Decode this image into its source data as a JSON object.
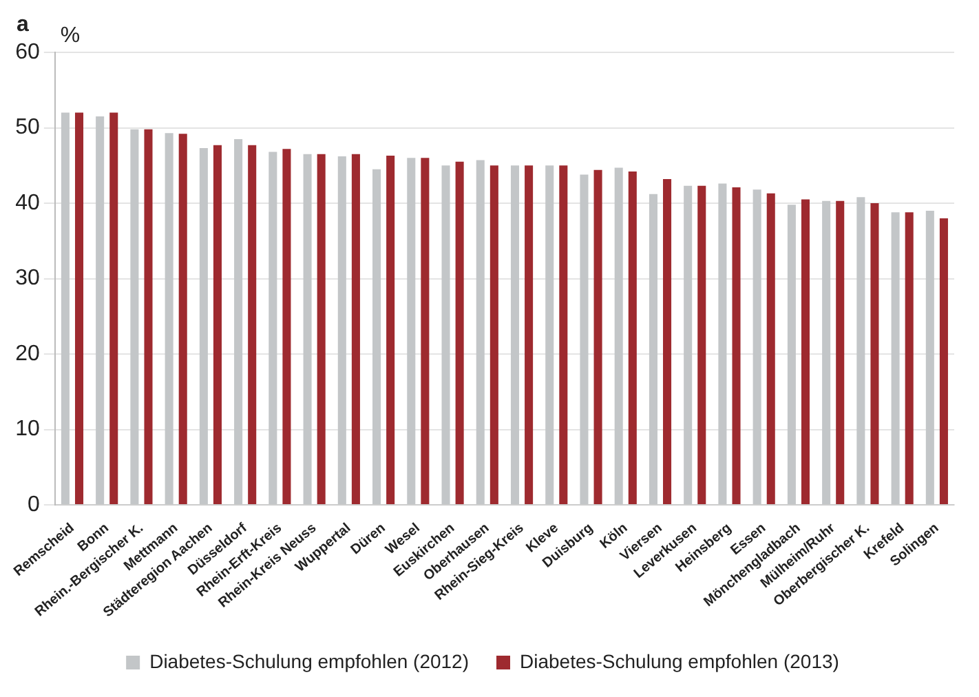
{
  "chart_data": {
    "type": "bar",
    "ylabel": "%",
    "annotations": [
      "a"
    ],
    "categories": [
      "Remscheid",
      "Bonn",
      "Rhein.-Bergischer K.",
      "Mettmann",
      "Städteregion Aachen",
      "Düsseldorf",
      "Rhein-Erft-Kreis",
      "Rhein-Kreis Neuss",
      "Wuppertal",
      "Düren",
      "Wesel",
      "Euskirchen",
      "Oberhausen",
      "Rhein-Sieg-Kreis",
      "Kleve",
      "Duisburg",
      "Köln",
      "Viersen",
      "Leverkusen",
      "Heinsberg",
      "Essen",
      "Mönchengladbach",
      "Mülheim/Ruhr",
      "Oberbergischer K.",
      "Krefeld",
      "Solingen"
    ],
    "series": [
      {
        "name": "Diabetes-Schulung empfohlen (2012)",
        "color": "#c3c6c8",
        "values": [
          52,
          51.5,
          49.8,
          49.3,
          47.3,
          48.5,
          46.8,
          46.5,
          46.2,
          44.5,
          46,
          45,
          45.7,
          45,
          45,
          43.8,
          44.7,
          41.2,
          42.3,
          42.6,
          41.8,
          39.8,
          40.3,
          40.8,
          38.8,
          39
        ]
      },
      {
        "name": "Diabetes-Schulung empfohlen (2013)",
        "color": "#9e2a2f",
        "values": [
          52,
          52,
          49.8,
          49.2,
          47.7,
          47.7,
          47.2,
          46.5,
          46.5,
          46.3,
          46,
          45.5,
          45,
          45,
          45,
          44.4,
          44.2,
          43.2,
          42.3,
          42.1,
          41.3,
          40.5,
          40.3,
          40,
          38.8,
          38
        ]
      }
    ],
    "ylim": [
      0,
      60
    ],
    "yticks": [
      0,
      10,
      20,
      30,
      40,
      50,
      60
    ],
    "grid": "y",
    "legend": "bottom"
  }
}
